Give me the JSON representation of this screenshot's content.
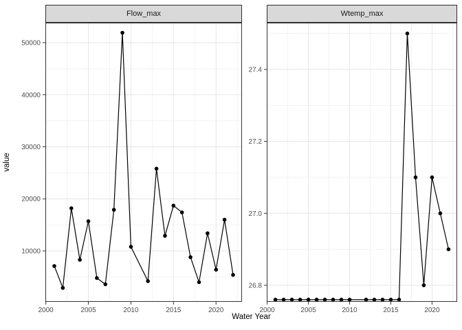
{
  "figure": {
    "y_axis_title": "value",
    "x_axis_title": "Water Year"
  },
  "style": {
    "background": "#FFFFFF",
    "strip_bg": "#D9D9D9",
    "strip_border": "#2B2B2B",
    "strip_text_color": "#1A1A1A",
    "panel_bg": "#FFFFFF",
    "panel_border": "#333333",
    "grid_major": "#E6E6E6",
    "grid_minor": "#F2F2F2",
    "series_color": "#000000",
    "tick_color": "#333333",
    "tick_label_color": "#4D4D4D",
    "axis_title_color": "#000000"
  },
  "chart_data": [
    {
      "type": "line",
      "facet": "Flow_max",
      "xlabel": "Water Year",
      "ylabel": "value",
      "legend": "none",
      "grid": true,
      "x": [
        2001,
        2002,
        2003,
        2004,
        2005,
        2006,
        2007,
        2008,
        2009,
        2010,
        2012,
        2013,
        2014,
        2015,
        2016,
        2017,
        2018,
        2019,
        2020,
        2021,
        2022
      ],
      "values": [
        7100,
        2900,
        18200,
        8300,
        15700,
        4800,
        3600,
        17900,
        51900,
        10800,
        4200,
        25800,
        12900,
        18700,
        17400,
        8800,
        4000,
        13400,
        6400,
        16000,
        5400
      ],
      "missing_years": [
        2011
      ],
      "xlim": [
        1999.95,
        2023.05
      ],
      "ylim": [
        230,
        53830
      ],
      "x_ticks": [
        2000,
        2005,
        2010,
        2015,
        2020
      ],
      "x_tick_labels": [
        "2000",
        "2005",
        "2010",
        "2015",
        "2020"
      ],
      "x_minor": [
        2002.5,
        2007.5,
        2012.5,
        2017.5,
        2022.5
      ],
      "y_ticks": [
        10000,
        20000,
        30000,
        40000,
        50000
      ],
      "y_tick_labels": [
        "10000",
        "20000",
        "30000",
        "40000",
        "50000"
      ],
      "y_minor": [
        5000,
        15000,
        25000,
        35000,
        45000
      ]
    },
    {
      "type": "line",
      "facet": "Wtemp_max",
      "xlabel": "Water Year",
      "ylabel": "value",
      "legend": "none",
      "grid": true,
      "x": [
        2001,
        2002,
        2003,
        2004,
        2005,
        2006,
        2007,
        2008,
        2009,
        2010,
        2012,
        2013,
        2014,
        2015,
        2016,
        2017,
        2018,
        2019,
        2020,
        2021,
        2022
      ],
      "values": [
        26.76,
        26.76,
        26.76,
        26.76,
        26.76,
        26.76,
        26.76,
        26.76,
        26.76,
        26.76,
        26.76,
        26.76,
        26.76,
        26.76,
        26.76,
        27.5,
        27.1,
        26.8,
        27.1,
        27.0,
        26.9
      ],
      "missing_years": [
        2011
      ],
      "xlim": [
        1999.95,
        2023.05
      ],
      "ylim": [
        26.754,
        27.53
      ],
      "x_ticks": [
        2000,
        2005,
        2010,
        2015,
        2020
      ],
      "x_tick_labels": [
        "2000",
        "2005",
        "2010",
        "2015",
        "2020"
      ],
      "x_minor": [
        2002.5,
        2007.5,
        2012.5,
        2017.5,
        2022.5
      ],
      "y_ticks": [
        26.8,
        27.0,
        27.2,
        27.4
      ],
      "y_tick_labels": [
        "26.8",
        "27.0",
        "27.2",
        "27.4"
      ],
      "y_minor": [
        26.9,
        27.1,
        27.3,
        27.5
      ]
    }
  ]
}
